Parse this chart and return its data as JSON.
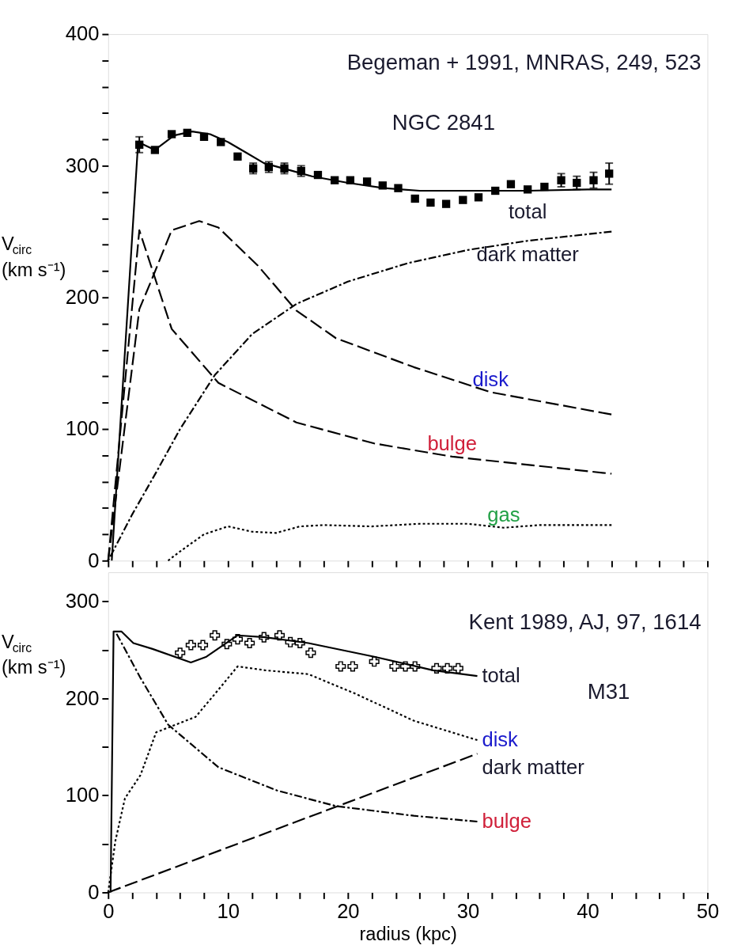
{
  "chart_data": [
    {
      "type": "line",
      "xlim": [
        0,
        50
      ],
      "ylim": [
        0,
        400
      ],
      "tick_labels": "y",
      "ylabel": "V$_{circ}$ (km s⁻¹)",
      "xticks": [
        0,
        {
          "value": 2,
          "label": null
        },
        {
          "value": 4,
          "label": null
        },
        {
          "value": 6,
          "label": null
        },
        {
          "value": 8,
          "label": null
        },
        10,
        {
          "value": 12,
          "label": null
        },
        {
          "value": 14,
          "label": null
        },
        {
          "value": 16,
          "label": null
        },
        {
          "value": 18,
          "label": null
        },
        20,
        {
          "value": 22,
          "label": null
        },
        {
          "value": 24,
          "label": null
        },
        {
          "value": 26,
          "label": null
        },
        {
          "value": 28,
          "label": null
        },
        30,
        {
          "value": 32,
          "label": null
        },
        {
          "value": 34,
          "label": null
        },
        {
          "value": 36,
          "label": null
        },
        {
          "value": 38,
          "label": null
        },
        40,
        {
          "value": 42,
          "label": null
        },
        {
          "value": 44,
          "label": null
        },
        {
          "value": 46,
          "label": null
        },
        {
          "value": 48,
          "label": null
        },
        50
      ],
      "yticks": [
        0,
        {
          "value": 20,
          "label": null
        },
        {
          "value": 40,
          "label": null
        },
        {
          "value": 60,
          "label": null
        },
        {
          "value": 80,
          "label": null
        },
        100,
        {
          "value": 120,
          "label": null
        },
        {
          "value": 140,
          "label": null
        },
        {
          "value": 160,
          "label": null
        },
        {
          "value": 180,
          "label": null
        },
        200,
        {
          "value": 220,
          "label": null
        },
        {
          "value": 240,
          "label": null
        },
        {
          "value": 260,
          "label": null
        },
        {
          "value": 280,
          "label": null
        },
        300,
        {
          "value": 320,
          "label": null
        },
        {
          "value": 340,
          "label": null
        },
        {
          "value": 360,
          "label": null
        },
        {
          "value": 380,
          "label": null
        },
        400
      ],
      "annotations": [
        "Begeman + 1991, MNRAS, 249, 523",
        "NGC 2841"
      ],
      "series": [
        {
          "name": "total",
          "line_style": "solid",
          "color": "#000000",
          "x": [
            0.3,
            2.5,
            3.9,
            5.5,
            7,
            8.5,
            10,
            11.5,
            13,
            15,
            17,
            20,
            23,
            26,
            30,
            35,
            40,
            42
          ],
          "values": [
            0,
            318,
            312,
            323,
            326,
            324,
            318,
            310,
            302,
            297,
            292,
            287,
            283,
            281,
            281,
            281,
            282,
            282
          ]
        },
        {
          "name": "dark matter",
          "line_style": "dashdot",
          "color": "#000000",
          "x": [
            0,
            2,
            4,
            6,
            8.9,
            12,
            15.7,
            20,
            25,
            30,
            35,
            42
          ],
          "values": [
            0,
            35,
            67,
            100,
            141,
            172,
            195,
            212,
            226,
            236,
            243,
            250
          ]
        },
        {
          "name": "disk",
          "line_style": "dashed",
          "color": "#000000",
          "x": [
            0,
            2.6,
            3.7,
            5.3,
            7.6,
            9.2,
            12.5,
            15.7,
            19,
            25.5,
            31.9,
            42
          ],
          "values": [
            0,
            191,
            215,
            251,
            258,
            253,
            224,
            190,
            169,
            147,
            128,
            111
          ]
        },
        {
          "name": "bulge",
          "line_style": "dashed",
          "color": "#000000",
          "x": [
            0,
            2.6,
            5.3,
            9.2,
            15.7,
            22.2,
            28.7,
            42
          ],
          "values": [
            0,
            251,
            176,
            135,
            105,
            89,
            79,
            66
          ]
        },
        {
          "name": "gas",
          "line_style": "dotted",
          "color": "#000000",
          "x": [
            5,
            6,
            8,
            10,
            12,
            14,
            16,
            18,
            22,
            26,
            30,
            33,
            36,
            42
          ],
          "values": [
            0,
            7,
            20,
            26,
            22,
            21,
            26,
            27,
            26,
            28,
            28,
            25,
            27,
            27
          ]
        },
        {
          "type": "scatter",
          "marker": "square",
          "color": "#000000",
          "x": [
            2.6,
            3.9,
            5.3,
            6.6,
            8,
            9.4,
            10.8,
            12.1,
            13.4,
            14.7,
            16.1,
            17.5,
            18.9,
            20.2,
            21.6,
            22.9,
            24.2,
            25.6,
            26.9,
            28.2,
            29.6,
            30.9,
            32.3,
            33.6,
            35,
            36.4,
            37.8,
            39.1,
            40.5,
            41.8
          ],
          "values": [
            316,
            312,
            324,
            325,
            322,
            318,
            307,
            298,
            299,
            298,
            296,
            293,
            289,
            289,
            288,
            285,
            283,
            275,
            272,
            271,
            274,
            276,
            281,
            286,
            282,
            284,
            289,
            287,
            289,
            294
          ],
          "errors": [
            6,
            null,
            null,
            null,
            null,
            null,
            null,
            4,
            4,
            4,
            4,
            null,
            null,
            null,
            null,
            null,
            null,
            null,
            null,
            null,
            null,
            null,
            null,
            null,
            null,
            null,
            5,
            5,
            6,
            8
          ]
        }
      ]
    },
    {
      "type": "line",
      "xlim": [
        0,
        50
      ],
      "ylim": [
        0,
        330
      ],
      "ylabel": "V$_{circ}$ (km s⁻¹)",
      "xlabel": "radius  (kpc)",
      "xticks": [
        0,
        {
          "value": 2,
          "label": null
        },
        {
          "value": 4,
          "label": null
        },
        {
          "value": 6,
          "label": null
        },
        {
          "value": 8,
          "label": null
        },
        10,
        {
          "value": 12,
          "label": null
        },
        {
          "value": 14,
          "label": null
        },
        {
          "value": 16,
          "label": null
        },
        {
          "value": 18,
          "label": null
        },
        20,
        {
          "value": 22,
          "label": null
        },
        {
          "value": 24,
          "label": null
        },
        {
          "value": 26,
          "label": null
        },
        {
          "value": 28,
          "label": null
        },
        30,
        {
          "value": 32,
          "label": null
        },
        {
          "value": 34,
          "label": null
        },
        {
          "value": 36,
          "label": null
        },
        {
          "value": 38,
          "label": null
        },
        40,
        {
          "value": 42,
          "label": null
        },
        {
          "value": 44,
          "label": null
        },
        {
          "value": 46,
          "label": null
        },
        {
          "value": 48,
          "label": null
        },
        50
      ],
      "yticks": [
        0,
        {
          "value": 50,
          "label": null
        },
        100,
        {
          "value": 150,
          "label": null
        },
        200,
        {
          "value": 250,
          "label": null
        },
        300
      ],
      "annotations": [
        "Kent 1989, AJ, 97, 1614",
        "M31"
      ],
      "series": [
        {
          "name": "total",
          "line_style": "solid",
          "color": "#000000",
          "x": [
            0.2,
            0.45,
            1.1,
            2.1,
            3.7,
            6.9,
            8.2,
            10.8,
            13.1,
            16.7,
            22.2,
            27.1,
            30.8
          ],
          "values": [
            0,
            269,
            269,
            257,
            251,
            237,
            243,
            265,
            263,
            257,
            243,
            229,
            223
          ]
        },
        {
          "name": "disk",
          "line_style": "dotted",
          "color": "#000000",
          "x": [
            0,
            0.6,
            1.4,
            2.7,
            4,
            7.3,
            9.2,
            10.8,
            13.1,
            16.7,
            20.6,
            25.5,
            30.8
          ],
          "values": [
            0,
            53,
            97,
            121,
            165,
            181,
            209,
            233,
            229,
            225,
            205,
            177,
            157
          ]
        },
        {
          "name": "dark matter",
          "line_style": "dashed",
          "color": "#000000",
          "x": [
            0,
            30.8
          ],
          "values": [
            0,
            143
          ]
        },
        {
          "name": "bulge",
          "line_style": "dashdot",
          "color": "#000000",
          "x": [
            0.6,
            2.7,
            5,
            9.2,
            14.1,
            19,
            25.5,
            30.8
          ],
          "values": [
            269,
            221,
            173,
            129,
            105,
            89,
            79,
            73
          ]
        },
        {
          "type": "scatter",
          "marker": "cross",
          "color": "#000000",
          "x": [
            6,
            6.9,
            7.9,
            8.9,
            9.9,
            10.8,
            11.8,
            13,
            14.3,
            15.2,
            16,
            16.9,
            19.4,
            20.4,
            22.2,
            23.9,
            24.8,
            25.6,
            27.4,
            28.3,
            29.2
          ],
          "values": [
            247,
            255,
            255,
            265,
            256,
            261,
            257,
            263,
            265,
            258,
            257,
            247,
            233,
            233,
            238,
            233,
            233,
            233,
            231,
            231,
            231
          ]
        }
      ]
    }
  ]
}
